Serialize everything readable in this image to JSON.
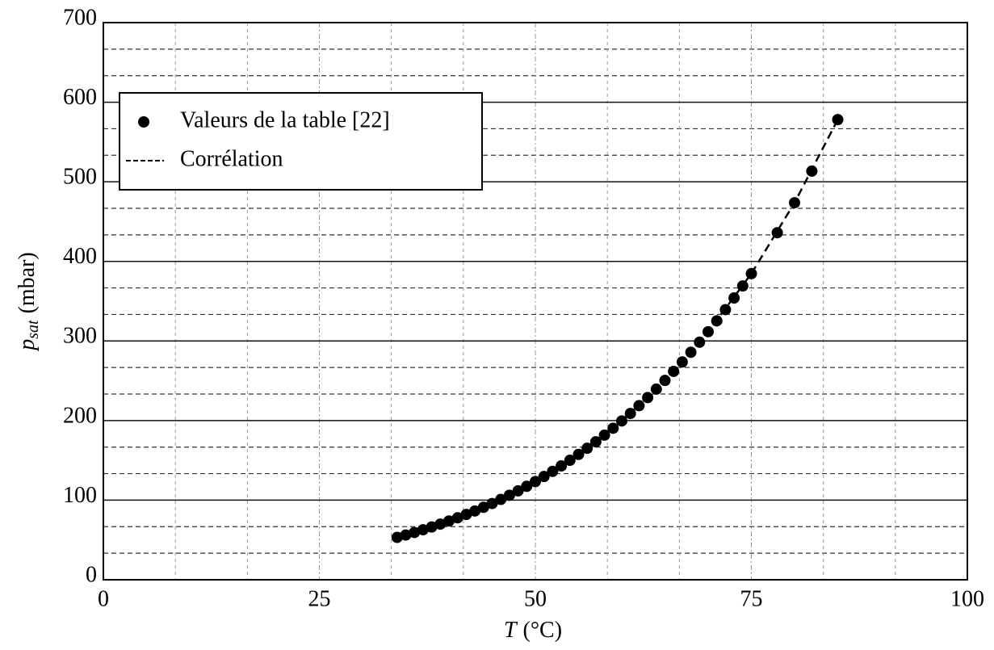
{
  "chart_data": {
    "type": "scatter",
    "xlabel": {
      "main": "T",
      "unit": "(°C)"
    },
    "ylabel": {
      "main": "p",
      "sub": "sat",
      "unit": "(mbar)"
    },
    "xlim": [
      0,
      100
    ],
    "xticks": [
      0,
      25,
      50,
      75,
      100
    ],
    "ylim": [
      0,
      700
    ],
    "yticks": [
      0,
      100,
      200,
      300,
      400,
      500,
      600,
      700
    ],
    "grid": true,
    "minor_grid_divisions": 3,
    "legend": "upper left",
    "series": [
      {
        "name": "Valeurs de la table [22]",
        "kind": "points",
        "color": "#000000",
        "x": [
          34,
          35,
          36,
          37,
          38,
          39,
          40,
          41,
          42,
          43,
          44,
          45,
          46,
          47,
          48,
          49,
          50,
          51,
          52,
          53,
          54,
          55,
          56,
          57,
          58,
          59,
          60,
          61,
          62,
          63,
          64,
          65,
          66,
          67,
          68,
          69,
          70,
          71,
          72,
          73,
          74,
          75,
          78,
          80,
          82,
          85
        ],
        "values": [
          53.2,
          56.2,
          59.4,
          62.8,
          66.3,
          69.9,
          73.8,
          77.8,
          82.0,
          86.4,
          91.0,
          95.8,
          100.9,
          106.2,
          111.7,
          117.4,
          123.4,
          129.7,
          136.2,
          143.0,
          150.1,
          157.5,
          165.2,
          173.3,
          181.7,
          190.4,
          199.5,
          208.9,
          218.7,
          228.9,
          239.5,
          250.4,
          261.8,
          273.6,
          285.8,
          298.5,
          311.6,
          325.3,
          339.4,
          354.0,
          369.1,
          384.6,
          436.0,
          473.7,
          513.4,
          578.1
        ]
      },
      {
        "name": "Corrélation",
        "kind": "line",
        "color": "#000000",
        "x": [
          34,
          40,
          45,
          50,
          55,
          60,
          65,
          70,
          75,
          80,
          85
        ],
        "values": [
          53.2,
          73.8,
          95.8,
          123.4,
          157.5,
          199.5,
          250.4,
          311.6,
          384.6,
          473.7,
          578.1
        ]
      }
    ]
  }
}
